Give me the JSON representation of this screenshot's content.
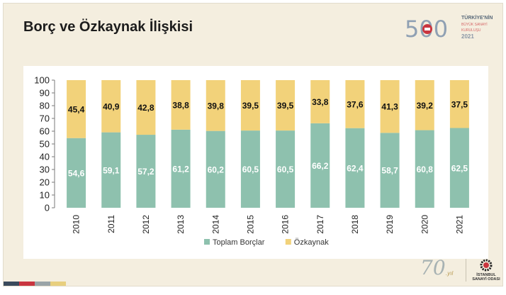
{
  "slide": {
    "title": "Borç ve Özkaynak İlişkisi",
    "logo_top": {
      "number": "500",
      "line1": "TÜRKİYE'NİN",
      "line2": "BÜYÜK SANAYİ KURULUŞU",
      "line3": "2021"
    },
    "logo_bottom": {
      "number": "70",
      "suffix": ".yıl",
      "org_line1": "İSTANBUL",
      "org_line2": "SANAYİ ODASI"
    }
  },
  "chart_data": {
    "type": "bar",
    "stacked": true,
    "categories": [
      "2010",
      "2011",
      "2012",
      "2013",
      "2014",
      "2015",
      "2016",
      "2017",
      "2018",
      "2019",
      "2020",
      "2021"
    ],
    "series": [
      {
        "name": "Toplam Borçlar",
        "color": "#8ec1ae",
        "values": [
          54.6,
          59.1,
          57.2,
          61.2,
          60.2,
          60.5,
          60.5,
          66.2,
          62.4,
          58.7,
          60.8,
          62.5
        ],
        "labels": [
          "54,6",
          "59,1",
          "57,2",
          "61,2",
          "60,2",
          "60,5",
          "60,5",
          "66,2",
          "62,4",
          "58,7",
          "60,8",
          "62,5"
        ],
        "label_color": "#ffffff"
      },
      {
        "name": "Özkaynak",
        "color": "#f2d27a",
        "values": [
          45.4,
          40.9,
          42.8,
          38.8,
          39.8,
          39.5,
          39.5,
          33.8,
          37.6,
          41.3,
          39.2,
          37.5
        ],
        "labels": [
          "45,4",
          "40,9",
          "42,8",
          "38,8",
          "39,8",
          "39,5",
          "39,5",
          "33,8",
          "37,6",
          "41,3",
          "39,2",
          "37,5"
        ],
        "label_color": "#111111"
      }
    ],
    "ylim": [
      0,
      100
    ],
    "yticks": [
      "0",
      "10",
      "20",
      "30",
      "40",
      "50",
      "60",
      "70",
      "80",
      "90",
      "100"
    ],
    "grid": false,
    "legend_position": "bottom"
  }
}
